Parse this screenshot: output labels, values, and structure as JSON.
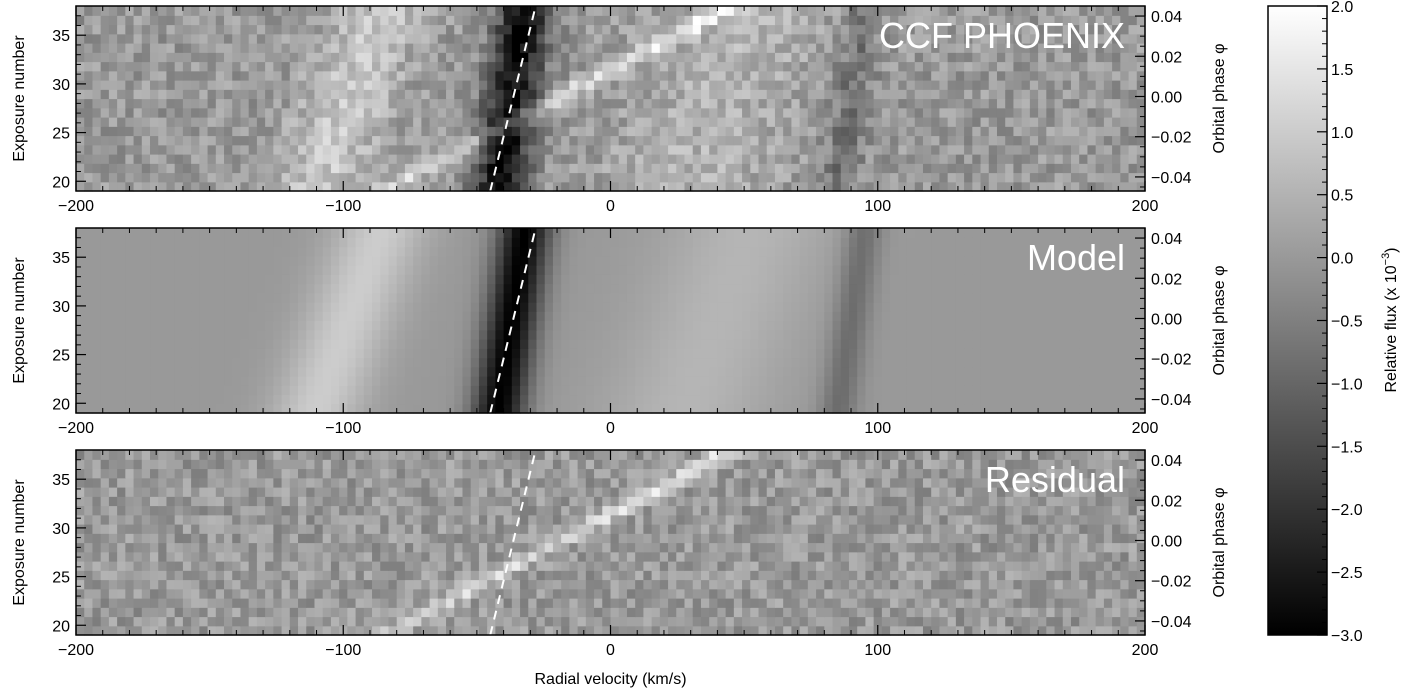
{
  "chart_data": [
    {
      "type": "heatmap",
      "label": "CCF PHOENIX",
      "colormap": "gray",
      "xlim": [
        -200,
        200
      ],
      "ylim_left": [
        19,
        38
      ],
      "ylim_right": [
        -0.047,
        0.045
      ],
      "x_ticks": [
        -200,
        -100,
        0,
        100,
        200
      ],
      "y_ticks_left": [
        20,
        25,
        30,
        35
      ],
      "y_ticks_right": [
        -0.04,
        -0.02,
        0.0,
        0.02,
        0.04
      ],
      "ylabel_left": "Exposure number",
      "ylabel_right": "Orbital phase φ",
      "xlabel": "",
      "trail_line": {
        "style": "dashed",
        "color": "#ffffff",
        "v_start": -45,
        "v_end": -28
      },
      "features": [
        {
          "kind": "dark_band",
          "center_v": -37,
          "width_v": 7,
          "strength": -2.8
        },
        {
          "kind": "bright_band",
          "center_v": -98,
          "width_v": 12,
          "strength": 0.9
        },
        {
          "kind": "bright_band",
          "center_v": 40,
          "width_v": 22,
          "strength": 0.5
        },
        {
          "kind": "dark_band",
          "center_v": 90,
          "width_v": 5,
          "strength": -0.8
        },
        {
          "kind": "planet_trail",
          "v_start": -85,
          "v_end": 45,
          "strength": 1.6
        }
      ]
    },
    {
      "type": "heatmap",
      "label": "Model",
      "colormap": "gray",
      "xlim": [
        -200,
        200
      ],
      "ylim_left": [
        19,
        38
      ],
      "ylim_right": [
        -0.047,
        0.045
      ],
      "x_ticks": [
        -200,
        -100,
        0,
        100,
        200
      ],
      "y_ticks_left": [
        20,
        25,
        30,
        35
      ],
      "y_ticks_right": [
        -0.04,
        -0.02,
        0.0,
        0.02,
        0.04
      ],
      "ylabel_left": "Exposure number",
      "ylabel_right": "Orbital phase φ",
      "xlabel": "",
      "trail_line": {
        "style": "dashed",
        "color": "#ffffff",
        "v_start": -45,
        "v_end": -28
      },
      "features": [
        {
          "kind": "dark_band",
          "center_v": -37,
          "width_v": 7,
          "strength": -3.0
        },
        {
          "kind": "bright_band",
          "center_v": -98,
          "width_v": 12,
          "strength": 1.0
        },
        {
          "kind": "bright_band",
          "center_v": 40,
          "width_v": 22,
          "strength": 0.55
        },
        {
          "kind": "dark_band",
          "center_v": 90,
          "width_v": 5,
          "strength": -0.9
        }
      ]
    },
    {
      "type": "heatmap",
      "label": "Residual",
      "colormap": "gray",
      "xlim": [
        -200,
        200
      ],
      "ylim_left": [
        19,
        38
      ],
      "ylim_right": [
        -0.047,
        0.045
      ],
      "x_ticks": [
        -200,
        -100,
        0,
        100,
        200
      ],
      "y_ticks_left": [
        20,
        25,
        30,
        35
      ],
      "y_ticks_right": [
        -0.04,
        -0.02,
        0.0,
        0.02,
        0.04
      ],
      "ylabel_left": "Exposure number",
      "ylabel_right": "Orbital phase φ",
      "xlabel": "Radial velocity (km/s)",
      "trail_line": {
        "style": "dashed",
        "color": "#ffffff",
        "v_start": -45,
        "v_end": -28
      },
      "features": [
        {
          "kind": "planet_trail",
          "v_start": -85,
          "v_end": 45,
          "strength": 1.6
        }
      ]
    }
  ],
  "colorbar": {
    "label_main": "Relative flux (x 10",
    "label_exp": "−3",
    "label_close": ")",
    "range": [
      -3.0,
      2.0
    ],
    "ticks": [
      "2.0",
      "1.5",
      "1.0",
      "0.5",
      "0.0",
      "−0.5",
      "−1.0",
      "−1.5",
      "−2.0",
      "−2.5",
      "−3.0"
    ],
    "tick_values": [
      2.0,
      1.5,
      1.0,
      0.5,
      0.0,
      -0.5,
      -1.0,
      -1.5,
      -2.0,
      -2.5,
      -3.0
    ]
  },
  "x_tick_labels": [
    "−200",
    "−100",
    "0",
    "100",
    "200"
  ],
  "y_tick_labels_left": [
    "20",
    "25",
    "30",
    "35"
  ],
  "y_tick_labels_right": [
    "−0.04",
    "−0.02",
    "0.00",
    "0.02",
    "0.04"
  ]
}
